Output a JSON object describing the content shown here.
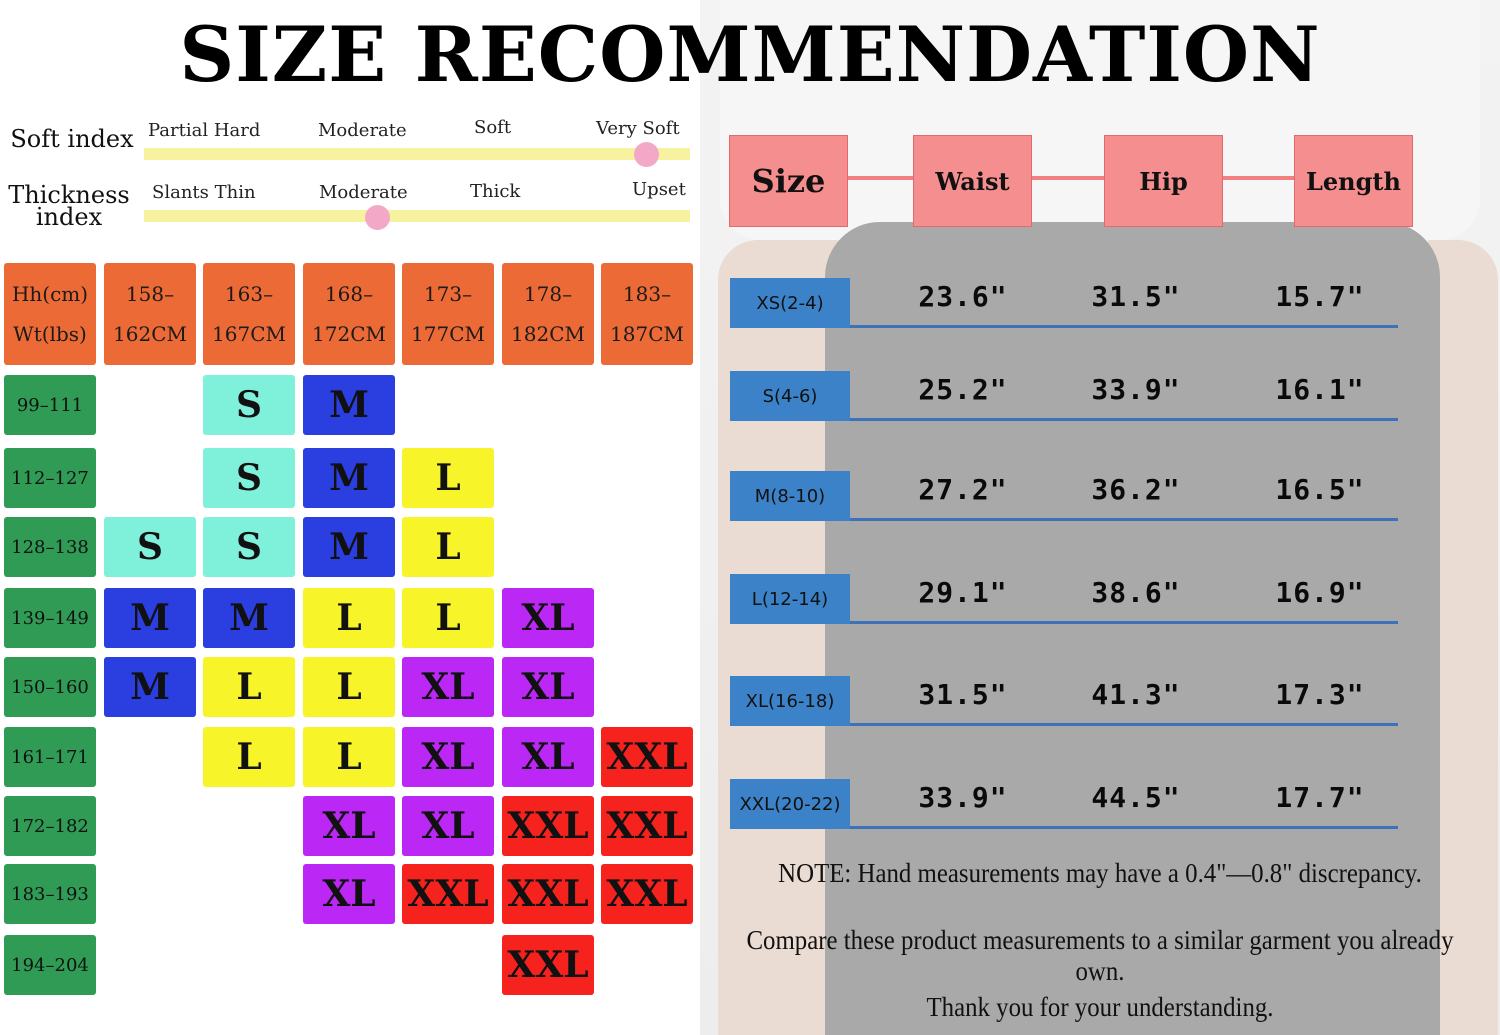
{
  "title": "SIZE RECOMMENDATION",
  "soft_index": {
    "label": "Soft index",
    "options": [
      "Partial Hard",
      "Moderate",
      "Soft",
      "Very Soft"
    ],
    "selected": "Very Soft"
  },
  "thickness_index": {
    "label": "Thickness index",
    "options": [
      "Slants Thin",
      "Moderate",
      "Thick",
      "Upset"
    ],
    "selected": "Moderate"
  },
  "size_grid": {
    "corner": [
      "Hh(cm)",
      "Wt(lbs)"
    ],
    "heights": [
      [
        "158–",
        "162CM"
      ],
      [
        "163–",
        "167CM"
      ],
      [
        "168–",
        "172CM"
      ],
      [
        "173–",
        "177CM"
      ],
      [
        "178–",
        "182CM"
      ],
      [
        "183–",
        "187CM"
      ]
    ],
    "rows": [
      {
        "weight": "99–111",
        "sizes": [
          "",
          "S",
          "M",
          "",
          "",
          ""
        ]
      },
      {
        "weight": "112–127",
        "sizes": [
          "",
          "S",
          "M",
          "L",
          "",
          ""
        ]
      },
      {
        "weight": "128–138",
        "sizes": [
          "S",
          "S",
          "M",
          "L",
          "",
          ""
        ]
      },
      {
        "weight": "139–149",
        "sizes": [
          "M",
          "M",
          "L",
          "L",
          "XL",
          ""
        ]
      },
      {
        "weight": "150–160",
        "sizes": [
          "M",
          "L",
          "L",
          "XL",
          "XL",
          ""
        ]
      },
      {
        "weight": "161–171",
        "sizes": [
          "",
          "L",
          "L",
          "XL",
          "XL",
          "XXL"
        ]
      },
      {
        "weight": "172–182",
        "sizes": [
          "",
          "",
          "XL",
          "XL",
          "XXL",
          "XXL"
        ]
      },
      {
        "weight": "183–193",
        "sizes": [
          "",
          "",
          "XL",
          "XXL",
          "XXL",
          "XXL"
        ]
      },
      {
        "weight": "194–204",
        "sizes": [
          "",
          "",
          "",
          "",
          "XXL",
          ""
        ]
      }
    ]
  },
  "measurements": {
    "headers": [
      "Size",
      "Waist",
      "Hip",
      "Length"
    ],
    "rows": [
      {
        "size": "XS(2-4)",
        "waist": "23.6\"",
        "hip": "31.5\"",
        "length": "15.7\""
      },
      {
        "size": "S(4-6)",
        "waist": "25.2\"",
        "hip": "33.9\"",
        "length": "16.1\""
      },
      {
        "size": "M(8-10)",
        "waist": "27.2\"",
        "hip": "36.2\"",
        "length": "16.5\""
      },
      {
        "size": "L(12-14)",
        "waist": "29.1\"",
        "hip": "38.6\"",
        "length": "16.9\""
      },
      {
        "size": "XL(16-18)",
        "waist": "31.5\"",
        "hip": "41.3\"",
        "length": "17.3\""
      },
      {
        "size": "XXL(20-22)",
        "waist": "33.9\"",
        "hip": "44.5\"",
        "length": "17.7\""
      }
    ]
  },
  "notes": [
    "NOTE: Hand measurements may have a 0.4\"—0.8\" discrepancy.",
    "Compare these product measurements  to a similar garment you already own.",
    "Thank you for your understanding."
  ],
  "colors": {
    "header": "#ec6a35",
    "weight": "#2f9b55",
    "S": "#7ff0da",
    "M": "#2b3fe0",
    "L": "#f7f52a",
    "XL": "#bb27f5",
    "XXL": "#f5221e",
    "measure_header": "#f58e8e",
    "size_label": "#3c82c8"
  }
}
